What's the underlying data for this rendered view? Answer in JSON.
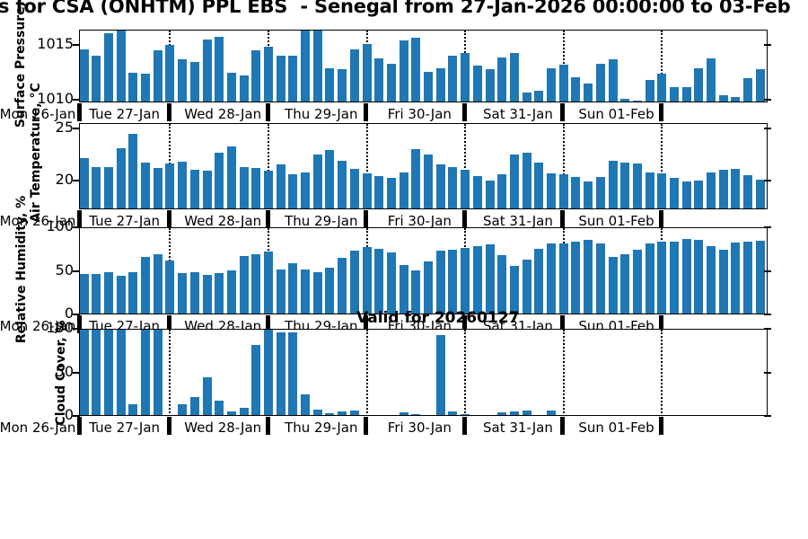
{
  "title": "s for CSA (ONHTM) PPL EBS  - Senegal from 27-Jan-2026 00:00:00 to 03-Feb",
  "valid_label": "Valid for 20260127",
  "colors": {
    "bar": "#1f77b4",
    "axis": "#000000",
    "text": "#000000"
  },
  "x_categories": [
    "Mon 26-Jan",
    "Tue 27-Jan",
    "Wed 28-Jan",
    "Thu 29-Jan",
    "Fri 30-Jan",
    "Sat 31-Jan",
    "Sun 01-Feb"
  ],
  "chart_data": [
    {
      "type": "bar",
      "series": "Surface Pressure",
      "ylabel": "Surface Pressure, hPa",
      "yticks": [
        1010,
        1015
      ],
      "ylim": [
        1009.75,
        1016.4
      ],
      "bars_per_day": 8,
      "categories": [
        "Mon 26-Jan",
        "Tue 27-Jan",
        "Wed 28-Jan",
        "Thu 29-Jan",
        "Fri 30-Jan",
        "Sat 31-Jan",
        "Sun 01-Feb"
      ],
      "values": [
        1014.5,
        1013.9,
        1016.0,
        1016.4,
        1012.4,
        1012.3,
        1014.4,
        1014.9,
        1013.6,
        1013.4,
        1015.4,
        1015.7,
        1012.4,
        1012.1,
        1014.4,
        1014.8,
        1013.9,
        1013.9,
        1016.4,
        1016.7,
        1012.8,
        1012.7,
        1014.5,
        1015.0,
        1013.7,
        1013.2,
        1015.3,
        1015.6,
        1012.5,
        1012.8,
        1013.9,
        1014.2,
        1013.0,
        1012.7,
        1013.8,
        1014.2,
        1010.6,
        1010.7,
        1012.8,
        1013.1,
        1012.0,
        1011.4,
        1013.2,
        1013.6,
        1010.0,
        1009.8,
        1011.7,
        1012.3,
        1011.1,
        1011.1,
        1012.8,
        1013.7,
        1010.3,
        1010.2,
        1011.9,
        1012.7
      ]
    },
    {
      "type": "bar",
      "series": "Air Temperature",
      "ylabel": "Air Temperature, °C",
      "yticks": [
        20,
        25
      ],
      "ylim": [
        17.2,
        25.5
      ],
      "bars_per_day": 8,
      "categories": [
        "Mon 26-Jan",
        "Tue 27-Jan",
        "Wed 28-Jan",
        "Thu 29-Jan",
        "Fri 30-Jan",
        "Sat 31-Jan",
        "Sun 01-Feb"
      ],
      "values": [
        22.0,
        21.2,
        21.2,
        23.0,
        24.4,
        21.6,
        21.1,
        21.5,
        21.7,
        20.9,
        20.8,
        22.6,
        23.2,
        21.2,
        21.1,
        20.8,
        21.4,
        20.5,
        20.7,
        22.4,
        22.8,
        21.8,
        21.0,
        20.6,
        20.3,
        20.1,
        20.7,
        22.9,
        22.4,
        21.4,
        21.2,
        20.9,
        20.3,
        19.9,
        20.5,
        22.4,
        22.6,
        21.6,
        20.6,
        20.5,
        20.2,
        19.8,
        20.2,
        21.8,
        21.6,
        21.5,
        20.7,
        20.6,
        20.1,
        19.8,
        19.9,
        20.7,
        20.9,
        21.0,
        20.4,
        20.0
      ]
    },
    {
      "type": "bar",
      "series": "Relative Humidity",
      "ylabel": "Relative Humidity, %",
      "yticks": [
        0,
        50,
        100
      ],
      "ylim": [
        0,
        100
      ],
      "bars_per_day": 8,
      "categories": [
        "Mon 26-Jan",
        "Tue 27-Jan",
        "Wed 28-Jan",
        "Thu 29-Jan",
        "Fri 30-Jan",
        "Sat 31-Jan",
        "Sun 01-Feb"
      ],
      "values": [
        45,
        45,
        47,
        43,
        47,
        65,
        68,
        61,
        46,
        47,
        44,
        46,
        50,
        66,
        68,
        71,
        51,
        58,
        51,
        47,
        53,
        64,
        72,
        76,
        74,
        70,
        56,
        50,
        60,
        72,
        73,
        75,
        77,
        79,
        67,
        55,
        62,
        74,
        80,
        80,
        83,
        85,
        80,
        65,
        68,
        73,
        80,
        82,
        83,
        86,
        85,
        77,
        73,
        81,
        82,
        84
      ]
    },
    {
      "type": "bar",
      "series": "Cloud Cover",
      "ylabel": "Cloud Cover, %",
      "yticks": [
        0,
        50,
        100
      ],
      "ylim": [
        0,
        100
      ],
      "bars_per_day": 8,
      "categories": [
        "Mon 26-Jan",
        "Tue 27-Jan",
        "Wed 28-Jan",
        "Thu 29-Jan",
        "Fri 30-Jan",
        "Sat 31-Jan",
        "Sun 01-Feb"
      ],
      "values": [
        100,
        98,
        100,
        99,
        12,
        100,
        100,
        0,
        12,
        21,
        43,
        17,
        4,
        8,
        80,
        100,
        95,
        95,
        24,
        6,
        2,
        4,
        5,
        0,
        0,
        0,
        3,
        1,
        0,
        92,
        4,
        1,
        0,
        0,
        3,
        4,
        5,
        0,
        5,
        0,
        0,
        0,
        0,
        0,
        0,
        0,
        0,
        0,
        0,
        0,
        0,
        0,
        0,
        0,
        0,
        0
      ]
    }
  ]
}
